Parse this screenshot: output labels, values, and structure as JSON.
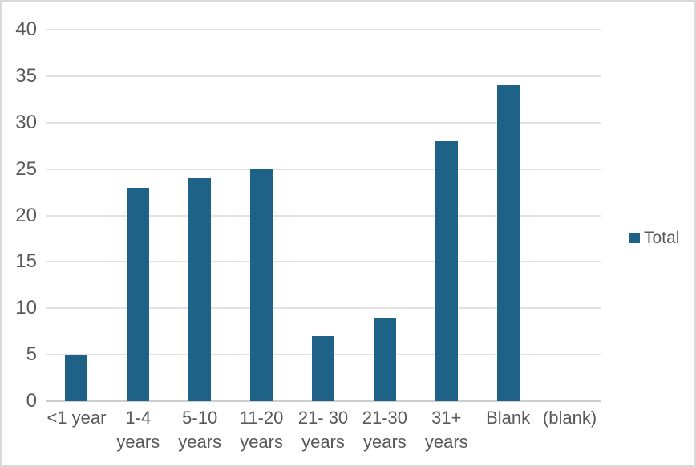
{
  "chart_data": {
    "type": "bar",
    "title": "",
    "xlabel": "",
    "ylabel": "",
    "categories": [
      "<1 year",
      "1-4 years",
      "5-10 years",
      "11-20 years",
      "21- 30 years",
      "21-30 years",
      "31+ years",
      "Blank",
      "(blank)"
    ],
    "category_lines": [
      [
        "<1 year"
      ],
      [
        "1-4",
        "years"
      ],
      [
        "5-10",
        "years"
      ],
      [
        "11-20",
        "years"
      ],
      [
        "21- 30",
        "years"
      ],
      [
        "21-30",
        "years"
      ],
      [
        "31+",
        "years"
      ],
      [
        "Blank"
      ],
      [
        "(blank)"
      ]
    ],
    "series": [
      {
        "name": "Total",
        "values": [
          5,
          23,
          24,
          25,
          7,
          9,
          28,
          34,
          0
        ]
      }
    ],
    "ylim": [
      0,
      40
    ],
    "yticks": [
      0,
      5,
      10,
      15,
      20,
      25,
      30,
      35,
      40
    ],
    "grid": "horizontal",
    "legend_position": "right-middle"
  },
  "colors": {
    "bar": "#1e6387",
    "gridline": "#e2e2e2",
    "axis_line": "#cdcdcd",
    "tick_text": "#595959",
    "legend_text": "#595959",
    "frame_border": "#d9d9d9",
    "background": "#ffffff"
  }
}
